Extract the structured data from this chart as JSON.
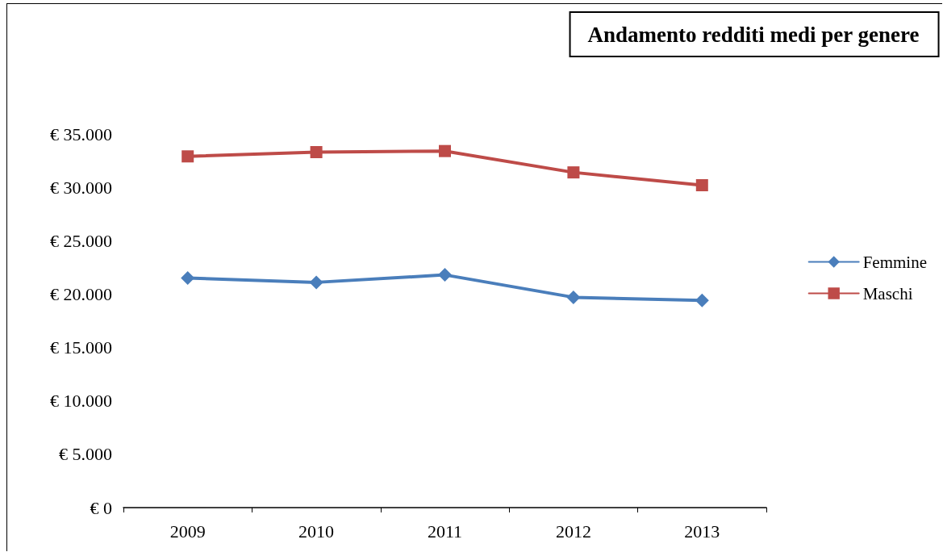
{
  "chart_data": {
    "type": "line",
    "title": "Andamento redditi medi per genere",
    "categories": [
      "2009",
      "2010",
      "2011",
      "2012",
      "2013"
    ],
    "series": [
      {
        "name": "Femmine",
        "color": "#4a7ebb",
        "marker": "diamond",
        "values": [
          21500,
          21100,
          21800,
          19700,
          19400
        ]
      },
      {
        "name": "Maschi",
        "color": "#be4b48",
        "marker": "square",
        "values": [
          32900,
          33300,
          33400,
          31400,
          30200
        ]
      }
    ],
    "ylim": [
      0,
      35000
    ],
    "yticks": [
      {
        "value": 0,
        "label": "€ 0"
      },
      {
        "value": 5000,
        "label": "€ 5.000"
      },
      {
        "value": 10000,
        "label": "€ 10.000"
      },
      {
        "value": 15000,
        "label": "€ 15.000"
      },
      {
        "value": 20000,
        "label": "€ 20.000"
      },
      {
        "value": 25000,
        "label": "€ 25.000"
      },
      {
        "value": 30000,
        "label": "€ 30.000"
      },
      {
        "value": 35000,
        "label": "€ 35.000"
      }
    ],
    "grid": false,
    "legend": "right",
    "line_style": "solid"
  }
}
